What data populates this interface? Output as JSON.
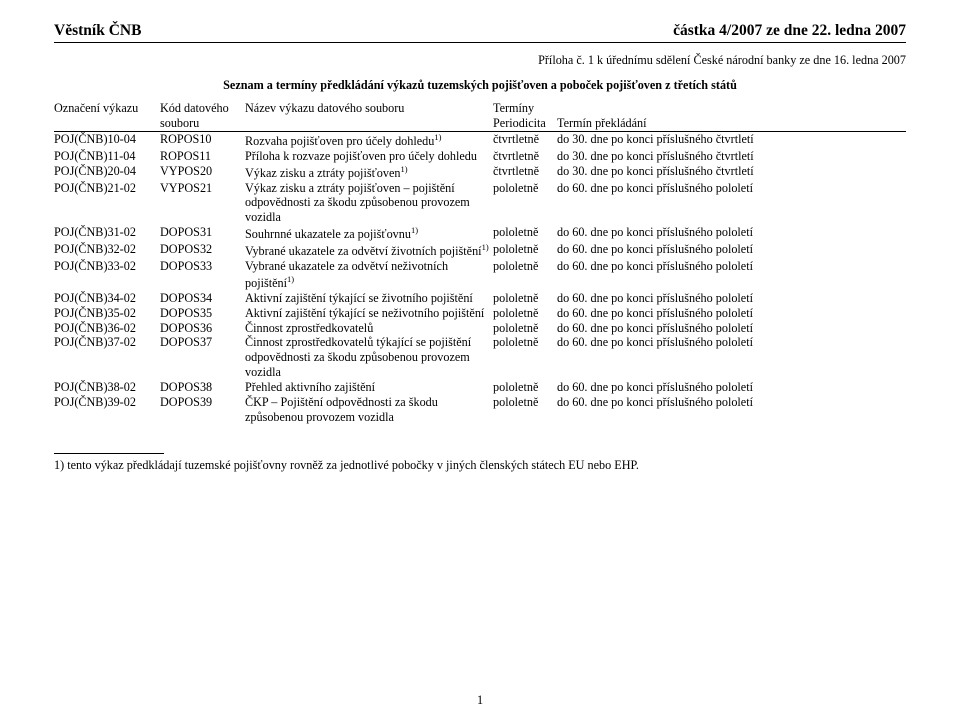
{
  "header": {
    "left": "Věstník ČNB",
    "right": "částka 4/2007 ze dne 22. ledna 2007"
  },
  "subtitle": "Příloha č. 1 k úřednímu sdělení České národní banky ze dne 16. ledna 2007",
  "title": "Seznam a termíny předkládání výkazů tuzemských pojišťoven a poboček pojišťoven z třetích států",
  "columns": {
    "r1": {
      "c1": "Označení výkazu",
      "c2": "Kód datového",
      "c3": "Název výkazu datového souboru",
      "c4_5": "Termíny"
    },
    "r2": {
      "c2": "souboru",
      "c4": "Periodicita",
      "c5": "Termín překládání"
    }
  },
  "sup": "1)",
  "rows": [
    {
      "c1": "POJ(ČNB)10-04",
      "c2": "ROPOS10",
      "c3": "Rozvaha pojišťoven pro účely dohledu",
      "sup": true,
      "c4": "čtvrtletně",
      "c5": "do 30. dne po konci příslušného čtvrtletí"
    },
    {
      "c1": "POJ(ČNB)11-04",
      "c2": "ROPOS11",
      "c3": "Příloha k rozvaze pojišťoven pro účely dohledu",
      "sup": false,
      "c4": "čtvrtletně",
      "c5": "do 30. dne po konci příslušného čtvrtletí"
    },
    {
      "c1": "POJ(ČNB)20-04",
      "c2": "VYPOS20",
      "c3": "Výkaz zisku a ztráty pojišťoven",
      "sup": true,
      "c4": "čtvrtletně",
      "c5": "do 30. dne po konci příslušného čtvrtletí"
    },
    {
      "c1": "POJ(ČNB)21-02",
      "c2": "VYPOS21",
      "c3": "Výkaz zisku a ztráty pojišťoven – pojištění odpovědnosti za škodu způsobenou provozem vozidla",
      "sup": false,
      "c4": "pololetně",
      "c5": "do 60. dne po konci příslušného pololetí"
    },
    {
      "c1": "POJ(ČNB)31-02",
      "c2": "DOPOS31",
      "c3": "Souhrnné ukazatele za pojišťovnu",
      "sup": true,
      "c4": "pololetně",
      "c5": "do 60. dne po konci příslušného pololetí"
    },
    {
      "c1": "POJ(ČNB)32-02",
      "c2": "DOPOS32",
      "c3": "Vybrané ukazatele za odvětví životních pojištění",
      "sup": true,
      "c4": "pololetně",
      "c5": "do 60. dne po konci příslušného pololetí"
    },
    {
      "c1": "POJ(ČNB)33-02",
      "c2": "DOPOS33",
      "c3": "Vybrané ukazatele za odvětví neživotních pojištění",
      "sup": true,
      "c4": "pololetně",
      "c5": "do 60. dne po konci příslušného pololetí"
    },
    {
      "c1": "POJ(ČNB)34-02",
      "c2": "DOPOS34",
      "c3": "Aktivní zajištění týkající se životního pojištění",
      "sup": false,
      "c4": "pololetně",
      "c5": "do 60. dne po konci příslušného pololetí"
    },
    {
      "c1": "POJ(ČNB)35-02",
      "c2": "DOPOS35",
      "c3": "Aktivní zajištění týkající se neživotního pojištění",
      "sup": false,
      "c4": "pololetně",
      "c5": "do 60. dne po konci příslušného pololetí"
    },
    {
      "c1": "POJ(ČNB)36-02",
      "c2": "DOPOS36",
      "c3": "Činnost zprostředkovatelů",
      "sup": false,
      "c4": "pololetně",
      "c5": "do 60. dne po konci příslušného pololetí"
    },
    {
      "c1": "POJ(ČNB)37-02",
      "c2": "DOPOS37",
      "c3": "Činnost zprostředkovatelů týkající se pojištění odpovědnosti za škodu způsobenou provozem vozidla",
      "sup": false,
      "c4": "pololetně",
      "c5": "do 60. dne po konci příslušného pololetí"
    },
    {
      "c1": "POJ(ČNB)38-02",
      "c2": "DOPOS38",
      "c3": "Přehled aktivního zajištění",
      "sup": false,
      "c4": "pololetně",
      "c5": "do 60. dne po konci příslušného pololetí"
    },
    {
      "c1": "POJ(ČNB)39-02",
      "c2": "DOPOS39",
      "c3": "ČKP – Pojištění odpovědnosti za škodu způsobenou provozem vozidla",
      "sup": false,
      "c4": "pololetně",
      "c5": "do 60. dne po konci příslušného pololetí"
    }
  ],
  "footnote": "1) tento výkaz předkládají tuzemské pojišťovny rovněž za jednotlivé pobočky v jiných členských státech EU nebo EHP.",
  "page_number": "1"
}
